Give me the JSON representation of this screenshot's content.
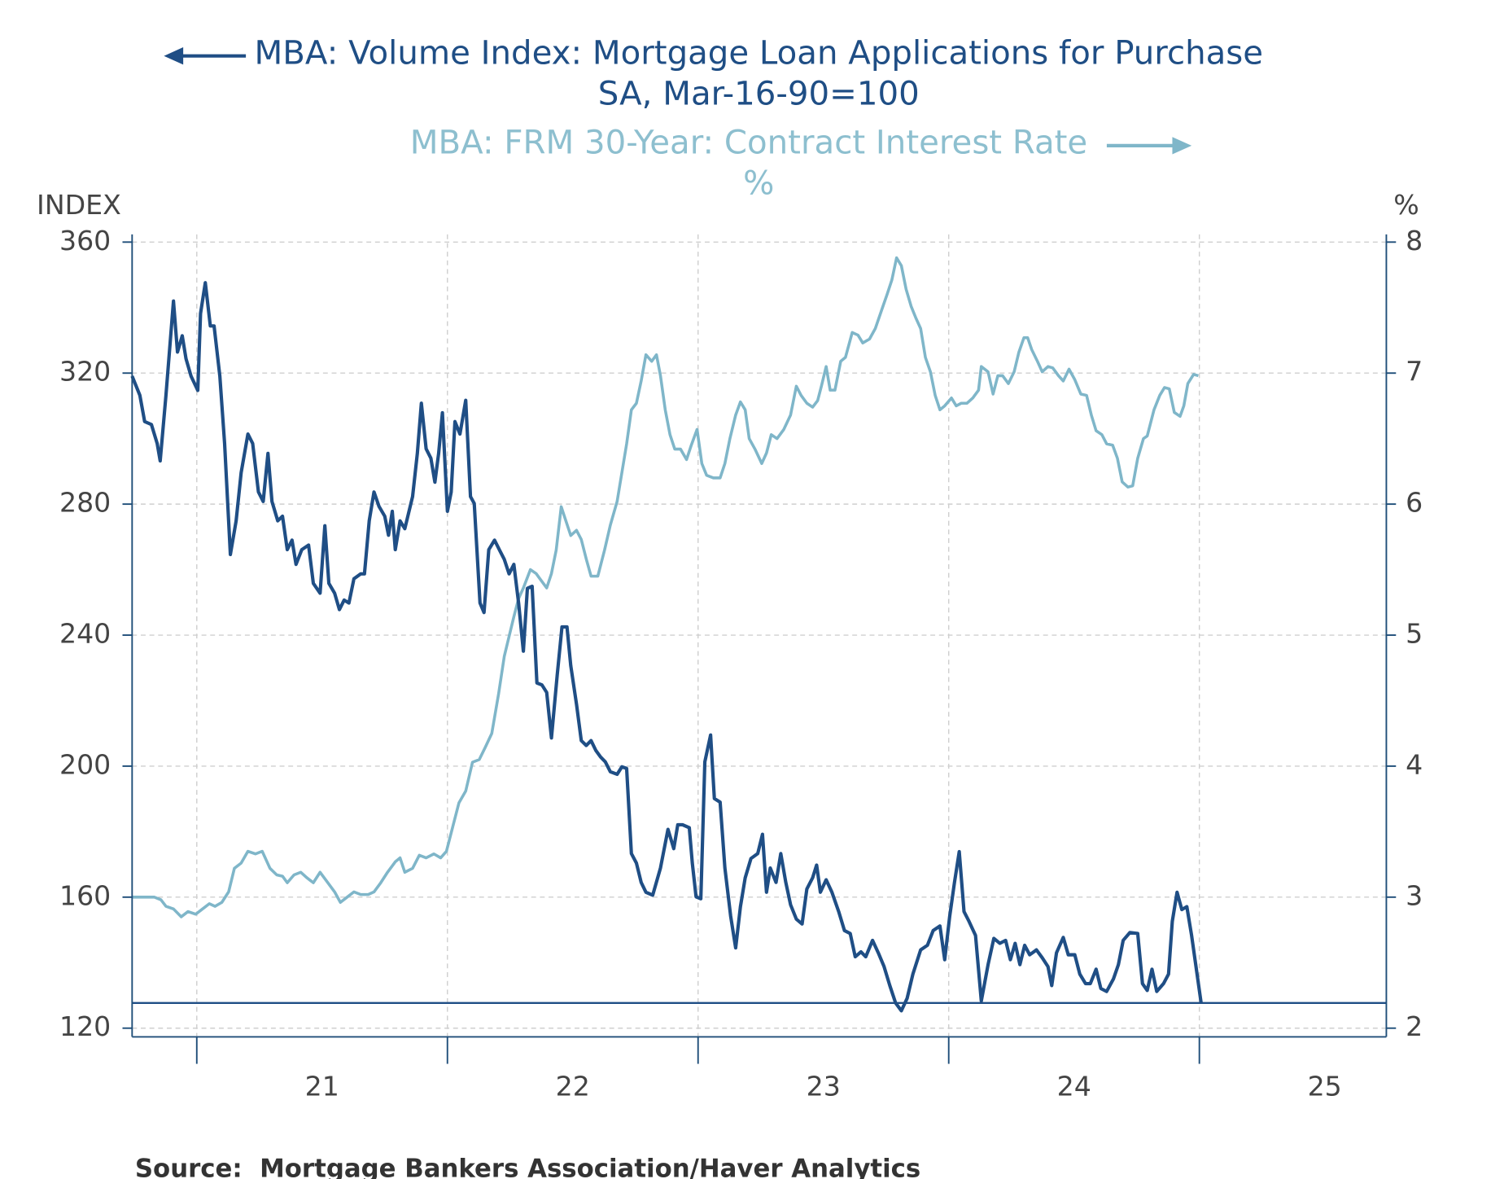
{
  "chart_data": {
    "type": "line",
    "series": [
      {
        "name": "MBA: Volume Index: Mortgage Loan Applications for Purchase",
        "unit": "SA, Mar-16-90=100",
        "color": "#1f4e85",
        "axis": "y",
        "x": [
          2020.742,
          2020.773,
          2020.792,
          2020.819,
          2020.842,
          2020.854,
          2020.877,
          2020.907,
          2020.923,
          2020.942,
          2020.957,
          2020.977,
          2021.004,
          2021.015,
          2021.034,
          2021.054,
          2021.069,
          2021.092,
          2021.111,
          2021.134,
          2021.157,
          2021.177,
          2021.204,
          2021.223,
          2021.246,
          2021.265,
          2021.284,
          2021.3,
          2021.323,
          2021.342,
          2021.361,
          2021.38,
          2021.396,
          2021.419,
          2021.446,
          2021.465,
          2021.492,
          2021.511,
          2021.527,
          2021.55,
          2021.569,
          2021.588,
          2021.607,
          2021.627,
          2021.654,
          2021.669,
          2021.688,
          2021.707,
          2021.727,
          2021.75,
          2021.765,
          2021.78,
          2021.792,
          2021.811,
          2021.83,
          2021.861,
          2021.88,
          2021.896,
          2021.915,
          2021.934,
          2021.95,
          2021.965,
          2021.98,
          2022.0,
          2022.015,
          2022.03,
          2022.05,
          2022.073,
          2022.092,
          2022.107,
          2022.13,
          2022.146,
          2022.165,
          2022.188,
          2022.207,
          2022.227,
          2022.246,
          2022.265,
          2022.284,
          2022.303,
          2022.319,
          2022.338,
          2022.357,
          2022.377,
          2022.396,
          2022.415,
          2022.438,
          2022.457,
          2022.477,
          2022.492,
          2022.515,
          2022.534,
          2022.554,
          2022.573,
          2022.592,
          2022.611,
          2022.63,
          2022.65,
          2022.677,
          2022.696,
          2022.715,
          2022.734,
          2022.754,
          2022.773,
          2022.792,
          2022.819,
          2022.85,
          2022.88,
          2022.903,
          2022.919,
          2022.938,
          2022.965,
          2022.977,
          2022.992,
          2023.011,
          2023.027,
          2023.05,
          2023.065,
          2023.088,
          2023.107,
          2023.13,
          2023.15,
          2023.169,
          2023.188,
          2023.211,
          2023.238,
          2023.257,
          2023.273,
          2023.288,
          2023.311,
          2023.33,
          2023.35,
          2023.369,
          2023.392,
          2023.415,
          2023.434,
          2023.457,
          2023.473,
          2023.488,
          2023.511,
          2023.534,
          2023.561,
          2023.584,
          2023.607,
          2023.627,
          2023.65,
          2023.669,
          2023.696,
          2023.719,
          2023.742,
          2023.765,
          2023.788,
          2023.811,
          2023.834,
          2023.857,
          2023.888,
          2023.915,
          2023.938,
          2023.965,
          2023.984,
          2024.004,
          2024.023,
          2024.042,
          2024.061,
          2024.081,
          2024.107,
          2024.13,
          2024.157,
          2024.18,
          2024.204,
          2024.227,
          2024.246,
          2024.265,
          2024.284,
          2024.303,
          2024.323,
          2024.35,
          2024.373,
          2024.396,
          2024.411,
          2024.43,
          2024.457,
          2024.477,
          2024.503,
          2024.523,
          2024.546,
          2024.565,
          2024.588,
          2024.607,
          2024.63,
          2024.657,
          2024.677,
          2024.696,
          2024.723,
          2024.754,
          2024.773,
          2024.792,
          2024.811,
          2024.83,
          2024.857,
          2024.877,
          2024.892,
          2024.911,
          2024.93,
          2024.95,
          2024.969,
          2024.988,
          2025.007
        ],
        "values": [
          319.1,
          313.2,
          305.2,
          304.3,
          298.5,
          293.2,
          313.2,
          342.0,
          326.4,
          331.4,
          324.4,
          319.1,
          314.7,
          338.2,
          347.6,
          334.4,
          334.4,
          319.1,
          298.5,
          264.6,
          274.9,
          289.6,
          301.4,
          298.5,
          283.7,
          280.8,
          295.5,
          280.8,
          274.9,
          276.3,
          266.1,
          269.0,
          261.6,
          266.1,
          267.5,
          255.8,
          252.8,
          273.4,
          255.8,
          252.8,
          247.8,
          250.7,
          249.8,
          257.2,
          258.7,
          258.7,
          274.9,
          283.7,
          279.3,
          276.3,
          270.5,
          277.8,
          266.1,
          274.9,
          272.5,
          282.3,
          295.5,
          310.8,
          296.9,
          294.0,
          286.7,
          295.5,
          307.9,
          277.8,
          283.7,
          305.2,
          301.4,
          311.7,
          282.3,
          280.2,
          249.8,
          246.9,
          266.1,
          269.0,
          266.1,
          263.1,
          258.7,
          261.6,
          249.8,
          235.1,
          254.3,
          254.9,
          225.4,
          224.8,
          222.5,
          208.6,
          227.8,
          242.5,
          242.5,
          230.7,
          218.9,
          207.8,
          206.3,
          207.8,
          204.8,
          202.8,
          201.3,
          198.3,
          197.5,
          199.8,
          199.3,
          173.3,
          170.4,
          164.5,
          161.5,
          160.6,
          168.9,
          180.7,
          174.8,
          182.1,
          182.1,
          181.2,
          170.4,
          160.1,
          159.5,
          201.3,
          209.5,
          190.1,
          189.0,
          168.9,
          154.2,
          144.5,
          157.1,
          165.9,
          171.8,
          173.3,
          179.2,
          161.5,
          168.9,
          164.5,
          173.3,
          164.5,
          157.7,
          153.3,
          151.8,
          162.5,
          165.9,
          169.8,
          161.5,
          165.3,
          161.5,
          155.6,
          149.8,
          148.9,
          141.8,
          143.3,
          141.8,
          146.8,
          143.0,
          138.8,
          133.0,
          127.7,
          125.3,
          129.1,
          136.5,
          143.9,
          145.3,
          149.8,
          151.2,
          140.9,
          154.2,
          164.5,
          173.9,
          155.6,
          152.6,
          148.3,
          128.3,
          139.4,
          147.4,
          145.9,
          146.8,
          140.9,
          145.9,
          139.4,
          145.3,
          142.4,
          143.9,
          141.5,
          138.8,
          133.0,
          143.0,
          147.7,
          142.4,
          142.4,
          136.5,
          133.6,
          133.6,
          138.0,
          132.1,
          131.2,
          135.0,
          139.4,
          146.8,
          149.2,
          148.9,
          133.6,
          131.5,
          138.0,
          131.2,
          133.6,
          136.5,
          152.6,
          161.5,
          156.2,
          157.1,
          148.3,
          138.0,
          127.7
        ]
      },
      {
        "name": "MBA: FRM 30-Year: Contract Interest Rate",
        "unit": "%",
        "color": "#7fb6c9",
        "axis": "y2",
        "x": [
          2020.742,
          2020.773,
          2020.8,
          2020.831,
          2020.857,
          2020.877,
          2020.907,
          2020.938,
          2020.965,
          2020.996,
          2021.023,
          2021.05,
          2021.073,
          2021.1,
          2021.127,
          2021.15,
          2021.177,
          2021.204,
          2021.234,
          2021.261,
          2021.292,
          2021.319,
          2021.342,
          2021.361,
          2021.388,
          2021.415,
          2021.438,
          2021.465,
          2021.492,
          2021.523,
          2021.55,
          2021.573,
          2021.6,
          2021.627,
          2021.654,
          2021.684,
          2021.707,
          2021.734,
          2021.761,
          2021.792,
          2021.811,
          2021.83,
          2021.861,
          2021.888,
          2021.915,
          2021.946,
          2021.973,
          2021.996,
          2022.023,
          2022.046,
          2022.073,
          2022.1,
          2022.127,
          2022.15,
          2022.177,
          2022.204,
          2022.227,
          2022.246,
          2022.265,
          2022.284,
          2022.303,
          2022.331,
          2022.354,
          2022.369,
          2022.396,
          2022.415,
          2022.434,
          2022.454,
          2022.473,
          2022.492,
          2022.515,
          2022.534,
          2022.554,
          2022.573,
          2022.6,
          2022.627,
          2022.65,
          2022.677,
          2022.696,
          2022.715,
          2022.734,
          2022.754,
          2022.773,
          2022.792,
          2022.815,
          2022.834,
          2022.85,
          2022.869,
          2022.888,
          2022.907,
          2022.93,
          2022.954,
          2022.973,
          2022.996,
          2023.015,
          2023.034,
          2023.061,
          2023.088,
          2023.107,
          2023.127,
          2023.15,
          2023.169,
          2023.188,
          2023.204,
          2023.227,
          2023.254,
          2023.273,
          2023.292,
          2023.315,
          2023.342,
          2023.369,
          2023.392,
          2023.411,
          2023.434,
          2023.457,
          2023.477,
          2023.492,
          2023.511,
          2023.527,
          2023.546,
          2023.569,
          2023.588,
          2023.615,
          2023.638,
          2023.657,
          2023.684,
          2023.707,
          2023.734,
          2023.754,
          2023.773,
          2023.792,
          2023.811,
          2023.83,
          2023.85,
          2023.869,
          2023.888,
          2023.907,
          2023.927,
          2023.946,
          2023.965,
          2023.984,
          2024.011,
          2024.03,
          2024.05,
          2024.073,
          2024.096,
          2024.119,
          2024.13,
          2024.157,
          2024.177,
          2024.196,
          2024.215,
          2024.238,
          2024.261,
          2024.28,
          2024.3,
          2024.315,
          2024.331,
          2024.354,
          2024.373,
          2024.396,
          2024.415,
          2024.438,
          2024.457,
          2024.48,
          2024.503,
          2024.527,
          2024.55,
          2024.569,
          2024.588,
          2024.611,
          2024.63,
          2024.654,
          2024.673,
          2024.692,
          2024.715,
          2024.734,
          2024.754,
          2024.777,
          2024.792,
          2024.819,
          2024.842,
          2024.861,
          2024.88,
          2024.9,
          2024.923,
          2024.938,
          2024.954,
          2024.977,
          2024.996
        ],
        "values": [
          3.0,
          3.0,
          3.0,
          3.0,
          2.98,
          2.93,
          2.91,
          2.85,
          2.89,
          2.87,
          2.91,
          2.95,
          2.93,
          2.96,
          3.04,
          3.22,
          3.26,
          3.35,
          3.33,
          3.35,
          3.22,
          3.17,
          3.16,
          3.11,
          3.17,
          3.19,
          3.15,
          3.11,
          3.19,
          3.11,
          3.04,
          2.96,
          3.0,
          3.04,
          3.02,
          3.02,
          3.04,
          3.11,
          3.19,
          3.27,
          3.3,
          3.19,
          3.22,
          3.32,
          3.3,
          3.33,
          3.3,
          3.35,
          3.55,
          3.72,
          3.81,
          4.03,
          4.05,
          4.14,
          4.25,
          4.55,
          4.84,
          4.99,
          5.14,
          5.28,
          5.36,
          5.5,
          5.47,
          5.43,
          5.36,
          5.47,
          5.65,
          5.98,
          5.87,
          5.76,
          5.8,
          5.73,
          5.58,
          5.45,
          5.45,
          5.65,
          5.84,
          6.02,
          6.24,
          6.46,
          6.72,
          6.77,
          6.94,
          7.14,
          7.09,
          7.14,
          6.98,
          6.72,
          6.53,
          6.42,
          6.42,
          6.34,
          6.45,
          6.57,
          6.31,
          6.22,
          6.2,
          6.2,
          6.31,
          6.5,
          6.68,
          6.78,
          6.72,
          6.5,
          6.42,
          6.31,
          6.39,
          6.53,
          6.5,
          6.57,
          6.68,
          6.9,
          6.83,
          6.77,
          6.74,
          6.79,
          6.9,
          7.05,
          6.87,
          6.87,
          7.09,
          7.12,
          7.31,
          7.29,
          7.23,
          7.26,
          7.34,
          7.49,
          7.6,
          7.71,
          7.88,
          7.82,
          7.64,
          7.51,
          7.42,
          7.34,
          7.12,
          7.01,
          6.83,
          6.72,
          6.75,
          6.81,
          6.75,
          6.77,
          6.77,
          6.81,
          6.87,
          7.05,
          7.01,
          6.84,
          6.98,
          6.98,
          6.92,
          7.01,
          7.16,
          7.27,
          7.27,
          7.18,
          7.09,
          7.01,
          7.05,
          7.04,
          6.98,
          6.94,
          7.03,
          6.95,
          6.84,
          6.83,
          6.68,
          6.56,
          6.53,
          6.46,
          6.45,
          6.35,
          6.17,
          6.13,
          6.14,
          6.35,
          6.5,
          6.52,
          6.72,
          6.83,
          6.89,
          6.88,
          6.7,
          6.67,
          6.75,
          6.92,
          6.99,
          6.98
        ]
      }
    ],
    "ylabel": "INDEX",
    "y2label": "%",
    "xlim": [
      2020.742,
      2025.746
    ],
    "xticks": [
      {
        "value": 2021,
        "label": "21"
      },
      {
        "value": 2022,
        "label": "22"
      },
      {
        "value": 2023,
        "label": "23"
      },
      {
        "value": 2024,
        "label": "24"
      },
      {
        "value": 2025,
        "label": "25"
      }
    ],
    "ylim": [
      120,
      360
    ],
    "yticks": [
      120,
      160,
      200,
      240,
      280,
      320,
      360
    ],
    "y2lim": [
      2,
      8
    ],
    "y2ticks": [
      2,
      3,
      4,
      5,
      6,
      7,
      8
    ],
    "grid": true,
    "source": "Source:  Mortgage Bankers Association/Haver Analytics"
  }
}
